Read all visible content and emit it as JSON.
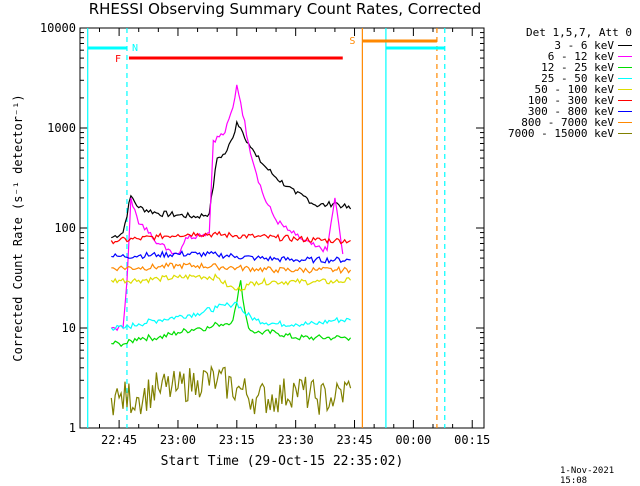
{
  "page": {
    "title": "RHESSI Observing Summary Count Rates, Corrected",
    "timestamp": "1-Nov-2021 15:08"
  },
  "chart_data": {
    "type": "line",
    "title": "RHESSI Observing Summary Count Rates, Corrected",
    "xlabel": "Start Time (29-Oct-15 22:35:02)",
    "ylabel": "Corrected Count Rate (s⁻¹ detector⁻¹)",
    "yscale": "log",
    "xlim": [
      "22:35:02",
      "00:18"
    ],
    "ylim": [
      1,
      10000
    ],
    "xticks": [
      "22:45",
      "23:00",
      "23:15",
      "23:30",
      "23:45",
      "00:00",
      "00:15"
    ],
    "yticks": [
      "1",
      "10",
      "100",
      "1000",
      "10000"
    ],
    "legend_title": "Det 1,5,7, Att 0",
    "legend_position": "right",
    "series": [
      {
        "name": "3 - 6 keV",
        "color": "#000000",
        "x": [
          "22:43",
          "22:46",
          "22:48",
          "22:50",
          "22:55",
          "23:00",
          "23:05",
          "23:08",
          "23:10",
          "23:12",
          "23:14",
          "23:15",
          "23:16",
          "23:18",
          "23:20",
          "23:22",
          "23:25",
          "23:28",
          "23:30",
          "23:32",
          "23:35",
          "23:38",
          "23:40",
          "23:42",
          "23:44"
        ],
        "values": [
          80,
          90,
          210,
          160,
          140,
          135,
          130,
          140,
          500,
          550,
          800,
          1150,
          1000,
          700,
          520,
          420,
          320,
          260,
          220,
          210,
          170,
          170,
          180,
          165,
          155
        ]
      },
      {
        "name": "6 - 12 keV",
        "color": "#ff00ff",
        "x": [
          "22:43",
          "22:46",
          "22:47",
          "22:48",
          "22:50",
          "22:53",
          "22:55",
          "22:58",
          "23:00",
          "23:02",
          "23:05",
          "23:08",
          "23:09",
          "23:12",
          "23:14",
          "23:15",
          "23:16",
          "23:18",
          "23:20",
          "23:22",
          "23:25",
          "23:28",
          "23:30",
          "23:32",
          "23:35",
          "23:38",
          "23:40",
          "23:42"
        ],
        "values": [
          10,
          10,
          30,
          200,
          110,
          90,
          70,
          60,
          55,
          80,
          85,
          90,
          750,
          900,
          1600,
          2700,
          1800,
          700,
          350,
          200,
          120,
          95,
          85,
          75,
          65,
          60,
          200,
          55
        ]
      },
      {
        "name": "12 - 25 keV",
        "color": "#00dd00",
        "x": [
          "22:43",
          "22:45",
          "22:47",
          "22:50",
          "22:55",
          "23:00",
          "23:05",
          "23:08",
          "23:10",
          "23:12",
          "23:14",
          "23:15",
          "23:16",
          "23:17",
          "23:18",
          "23:20",
          "23:25",
          "23:30",
          "23:35",
          "23:40",
          "23:44"
        ],
        "values": [
          7,
          7,
          7,
          8,
          8,
          9,
          10,
          10,
          11,
          11,
          12,
          18,
          30,
          15,
          10,
          9,
          9,
          8,
          8,
          8,
          8
        ]
      },
      {
        "name": "25 - 50 keV",
        "color": "#00ffff",
        "x": [
          "22:43",
          "22:46",
          "22:50",
          "22:55",
          "23:00",
          "23:05",
          "23:10",
          "23:13",
          "23:15",
          "23:17",
          "23:20",
          "23:25",
          "23:30",
          "23:35",
          "23:40",
          "23:44"
        ],
        "values": [
          10,
          10,
          11,
          12,
          13,
          14,
          16,
          17,
          18,
          14,
          12,
          11,
          11,
          11,
          12,
          12
        ]
      },
      {
        "name": "50 - 100 keV",
        "color": "#dddd00",
        "x": [
          "22:43",
          "22:45",
          "22:50",
          "22:55",
          "23:00",
          "23:05",
          "23:10",
          "23:13",
          "23:15",
          "23:18",
          "23:20",
          "23:25",
          "23:30",
          "23:35",
          "23:40",
          "23:44"
        ],
        "values": [
          30,
          30,
          30,
          31,
          32,
          33,
          32,
          26,
          24,
          27,
          29,
          29,
          29,
          29,
          29,
          30
        ]
      },
      {
        "name": "100 - 300 keV",
        "color": "#ff0000",
        "x": [
          "22:43",
          "22:45",
          "22:50",
          "22:55",
          "23:00",
          "23:05",
          "23:10",
          "23:15",
          "23:20",
          "23:25",
          "23:30",
          "23:35",
          "23:40",
          "23:44"
        ],
        "values": [
          75,
          75,
          78,
          82,
          86,
          88,
          86,
          84,
          82,
          80,
          78,
          76,
          75,
          75
        ]
      },
      {
        "name": "300 - 800 keV",
        "color": "#0000ff",
        "x": [
          "22:43",
          "22:45",
          "22:50",
          "22:55",
          "23:00",
          "23:05",
          "23:10",
          "23:15",
          "23:20",
          "23:25",
          "23:30",
          "23:35",
          "23:40",
          "23:44"
        ],
        "values": [
          52,
          52,
          53,
          54,
          55,
          55,
          54,
          52,
          50,
          49,
          48,
          48,
          48,
          48
        ]
      },
      {
        "name": "800 - 7000 keV",
        "color": "#ff8800",
        "x": [
          "22:43",
          "22:45",
          "22:50",
          "22:55",
          "23:00",
          "23:05",
          "23:10",
          "23:15",
          "23:20",
          "23:25",
          "23:30",
          "23:35",
          "23:40",
          "23:44"
        ],
        "values": [
          40,
          40,
          40,
          41,
          42,
          42,
          41,
          40,
          39,
          38,
          38,
          38,
          38,
          38
        ]
      },
      {
        "name": "7000 - 15000 keV",
        "color": "#808000",
        "x": [
          "22:43",
          "22:45",
          "22:50",
          "22:55",
          "23:00",
          "23:05",
          "23:10",
          "23:15",
          "23:20",
          "23:25",
          "23:30",
          "23:35",
          "23:40",
          "23:44"
        ],
        "values": [
          2,
          2,
          2,
          2.5,
          2.5,
          3,
          3,
          2.5,
          2,
          2,
          2.5,
          2,
          2,
          2.5
        ]
      }
    ],
    "annotations": {
      "flags": [
        {
          "label": "N",
          "start": "22:47",
          "end": "00:03",
          "color": "#00ffff"
        },
        {
          "label": "F",
          "start": "22:47",
          "end": "23:42",
          "color": "#ff0000"
        },
        {
          "label": "S",
          "start": "23:47",
          "end": "00:06",
          "color": "#ff8800"
        }
      ],
      "vertical_lines": [
        {
          "time": "22:37",
          "color": "#00ffff",
          "style": "solid"
        },
        {
          "time": "22:47",
          "color": "#00ffff",
          "style": "dashed"
        },
        {
          "time": "23:47",
          "color": "#ff8800",
          "style": "solid"
        },
        {
          "time": "23:53",
          "color": "#00ffff",
          "style": "solid"
        },
        {
          "time": "00:06",
          "color": "#ff8800",
          "style": "dashed"
        },
        {
          "time": "00:08",
          "color": "#00ffff",
          "style": "dashed"
        }
      ],
      "attenuator_segments": [
        {
          "start": "22:37",
          "end": "22:47",
          "color": "#00ffff"
        },
        {
          "start": "23:53",
          "end": "00:08",
          "color": "#00ffff"
        }
      ]
    }
  }
}
